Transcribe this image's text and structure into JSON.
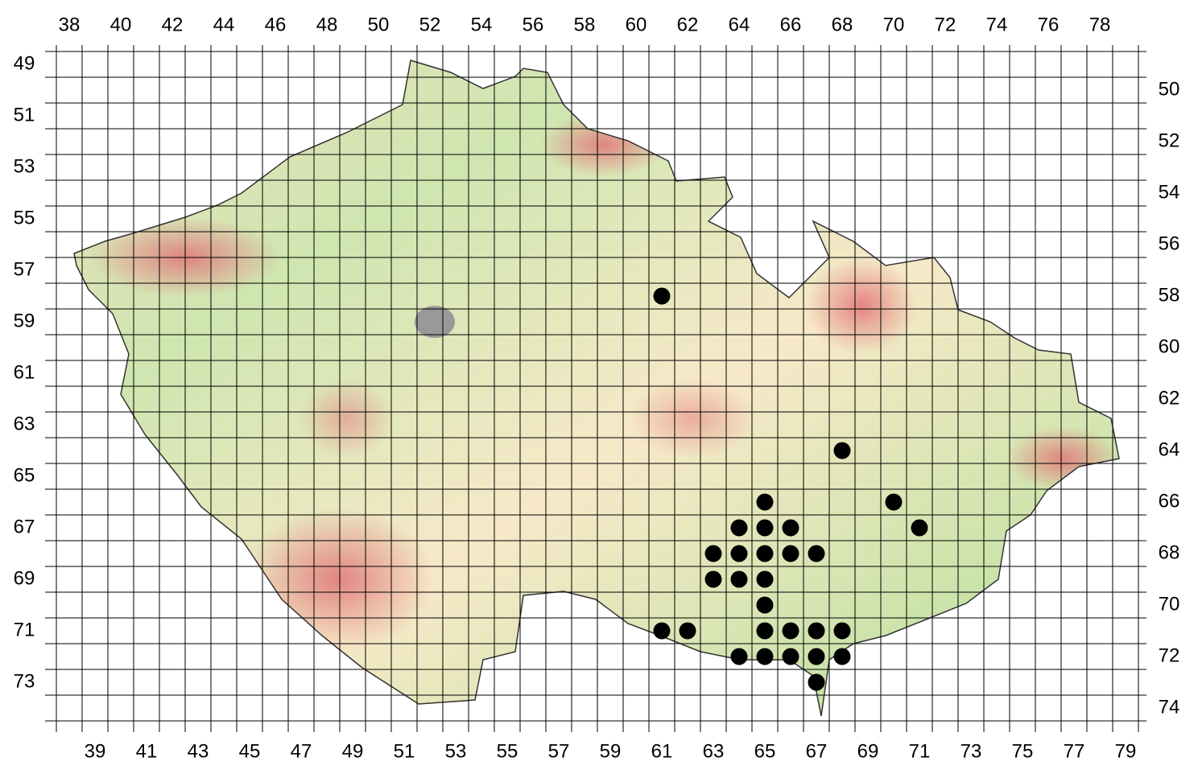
{
  "top_labels": [
    38,
    40,
    42,
    44,
    46,
    48,
    50,
    52,
    54,
    56,
    58,
    60,
    62,
    64,
    66,
    68,
    70,
    72,
    74,
    76,
    78
  ],
  "bottom_labels": [
    39,
    41,
    43,
    45,
    47,
    49,
    51,
    53,
    55,
    57,
    59,
    61,
    63,
    65,
    67,
    69,
    71,
    73,
    75,
    77,
    79
  ],
  "left_labels": [
    49,
    51,
    53,
    55,
    57,
    59,
    61,
    63,
    65,
    67,
    69,
    71,
    73
  ],
  "right_labels": [
    50,
    52,
    54,
    56,
    58,
    60,
    62,
    64,
    66,
    68,
    70,
    72,
    74
  ],
  "occurrences": [
    {
      "column": 61,
      "row": 58
    },
    {
      "column": 68,
      "row": 64
    },
    {
      "column": 65,
      "row": 66
    },
    {
      "column": 70,
      "row": 66
    },
    {
      "column": 64,
      "row": 67
    },
    {
      "column": 65,
      "row": 67
    },
    {
      "column": 66,
      "row": 67
    },
    {
      "column": 71,
      "row": 67
    },
    {
      "column": 63,
      "row": 68
    },
    {
      "column": 64,
      "row": 68
    },
    {
      "column": 65,
      "row": 68
    },
    {
      "column": 66,
      "row": 68
    },
    {
      "column": 67,
      "row": 68
    },
    {
      "column": 63,
      "row": 69
    },
    {
      "column": 64,
      "row": 69
    },
    {
      "column": 65,
      "row": 69
    },
    {
      "column": 65,
      "row": 70
    },
    {
      "column": 61,
      "row": 71
    },
    {
      "column": 62,
      "row": 71
    },
    {
      "column": 65,
      "row": 71
    },
    {
      "column": 66,
      "row": 71
    },
    {
      "column": 67,
      "row": 71
    },
    {
      "column": 68,
      "row": 71
    },
    {
      "column": 64,
      "row": 72
    },
    {
      "column": 65,
      "row": 72
    },
    {
      "column": 66,
      "row": 72
    },
    {
      "column": 67,
      "row": 72
    },
    {
      "column": 68,
      "row": 72
    },
    {
      "column": 67,
      "row": 73
    }
  ]
}
